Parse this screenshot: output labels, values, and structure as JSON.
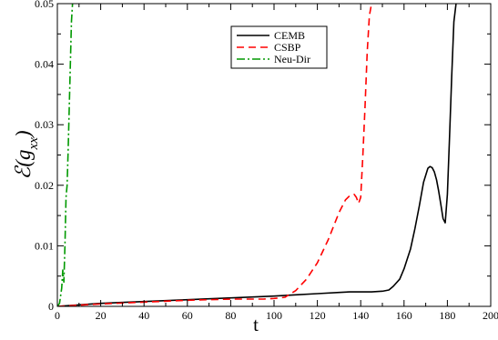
{
  "chart_data": {
    "type": "line",
    "title": "",
    "xlabel": "t",
    "ylabel": "ℰ(g",
    "ylabel_sub": "xx",
    "xlim": [
      0,
      200
    ],
    "ylim": [
      0,
      0.05
    ],
    "xticks": [
      0,
      20,
      40,
      60,
      80,
      100,
      120,
      140,
      160,
      180,
      200
    ],
    "yticks": [
      0,
      0.01,
      0.02,
      0.03,
      0.04,
      0.05
    ],
    "ytick_labels": [
      "0",
      "0.01",
      "0.02",
      "0.03",
      "0.04",
      "0.05"
    ],
    "grid": false,
    "legend_position": "top-center",
    "series": [
      {
        "name": "CEMB",
        "color": "#000000",
        "dash": "solid",
        "x": [
          0,
          20,
          40,
          60,
          80,
          100,
          110,
          120,
          130,
          135,
          140,
          145,
          150,
          153,
          155,
          158,
          160,
          163,
          165,
          167,
          169,
          171,
          172,
          173,
          174,
          175,
          176,
          177,
          178,
          179,
          180,
          181,
          182,
          183,
          184
        ],
        "y": [
          0,
          0.0005,
          0.0008,
          0.0011,
          0.0014,
          0.0017,
          0.0019,
          0.0021,
          0.0023,
          0.0024,
          0.0024,
          0.0024,
          0.0025,
          0.0027,
          0.0033,
          0.0045,
          0.0062,
          0.0095,
          0.0128,
          0.0165,
          0.0205,
          0.0228,
          0.0231,
          0.0229,
          0.0222,
          0.0209,
          0.019,
          0.0168,
          0.0145,
          0.0138,
          0.0185,
          0.028,
          0.038,
          0.047,
          0.05
        ]
      },
      {
        "name": "CSBP",
        "color": "#ff0000",
        "dash": "dashed",
        "x": [
          0,
          20,
          40,
          60,
          80,
          95,
          100,
          105,
          110,
          115,
          120,
          125,
          130,
          133,
          135,
          137,
          138,
          139,
          140,
          141,
          142,
          143,
          144,
          145
        ],
        "y": [
          0,
          0.0004,
          0.0007,
          0.001,
          0.0012,
          0.0012,
          0.0013,
          0.0015,
          0.0026,
          0.0045,
          0.0072,
          0.011,
          0.0155,
          0.0176,
          0.0183,
          0.0185,
          0.018,
          0.017,
          0.018,
          0.025,
          0.033,
          0.042,
          0.048,
          0.05
        ]
      },
      {
        "name": "Neu-Dir",
        "color": "#009900",
        "dash": "dash-dot",
        "x": [
          0,
          1,
          2,
          2.5,
          3,
          3.5,
          4,
          4.5,
          5,
          5.5,
          6,
          6.5,
          7
        ],
        "y": [
          0,
          0.0005,
          0.003,
          0.006,
          0.004,
          0.01,
          0.018,
          0.02,
          0.026,
          0.033,
          0.04,
          0.047,
          0.05
        ]
      }
    ]
  }
}
